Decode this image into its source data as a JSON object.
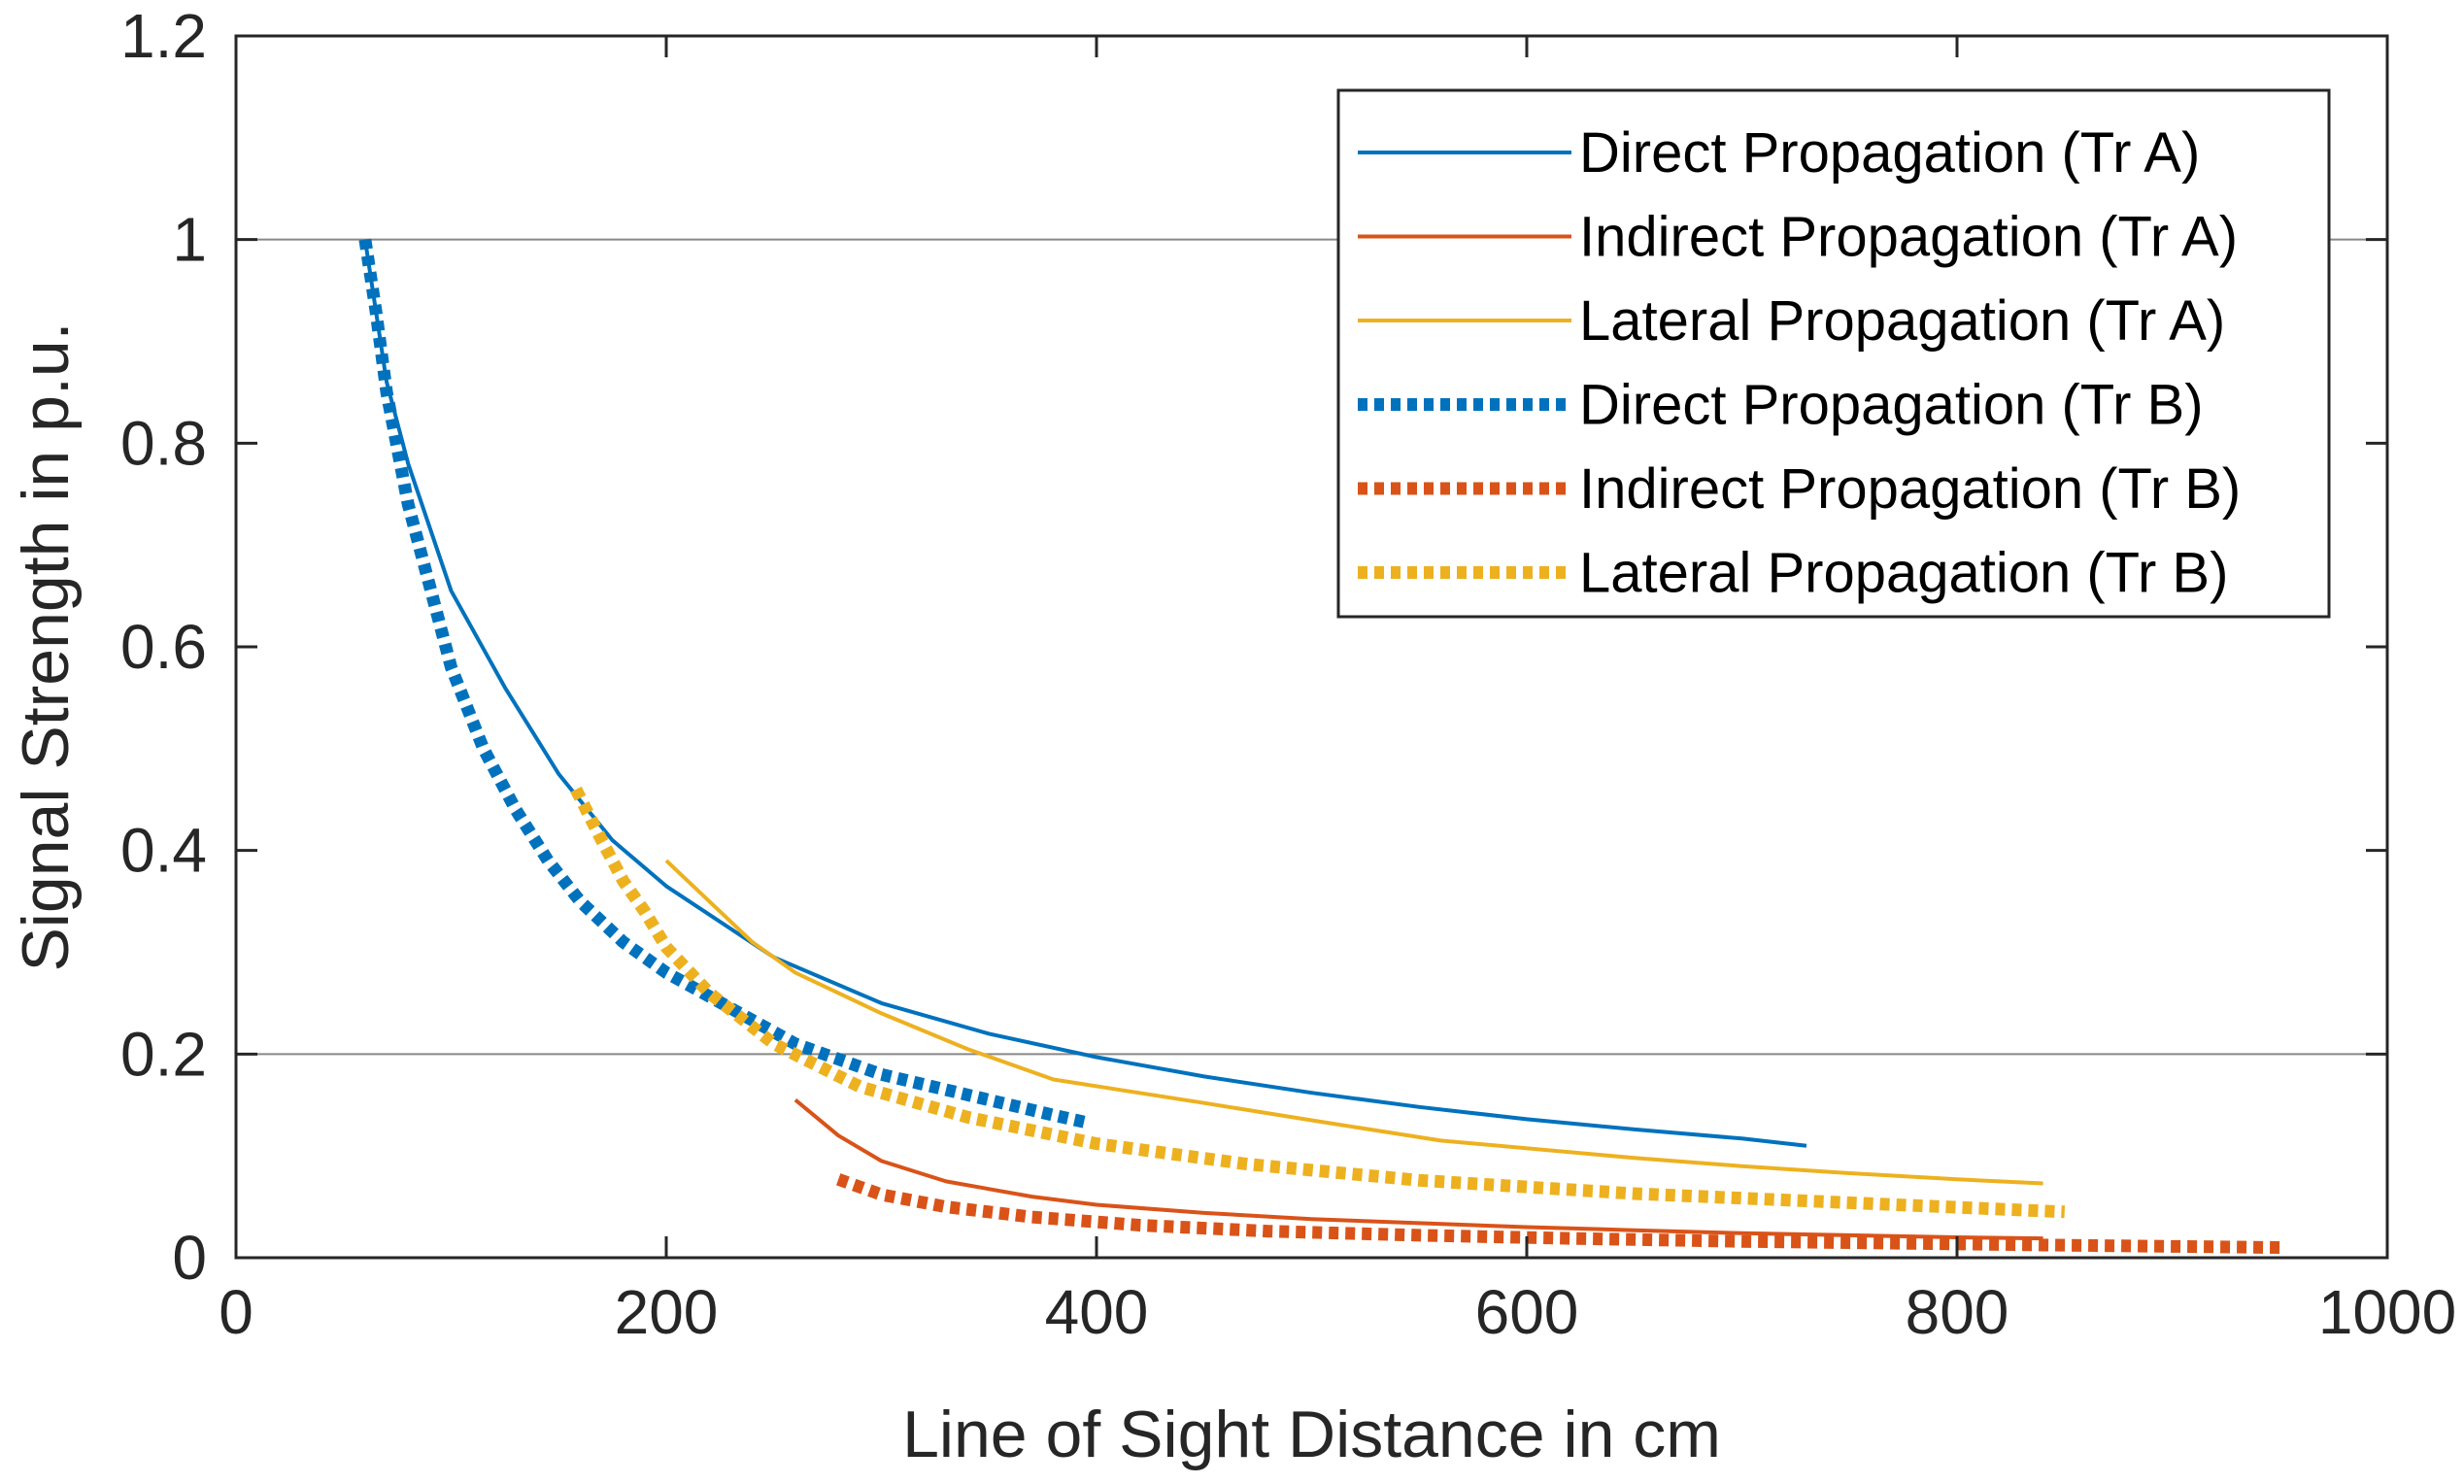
{
  "chart_data": {
    "type": "line",
    "title": "",
    "xlabel": "Line of Sight Distance in cm",
    "ylabel": "Signal Strength in p.u.",
    "xlim": [
      0,
      1000
    ],
    "ylim": [
      0,
      1.2
    ],
    "xticks": [
      0,
      200,
      400,
      600,
      800,
      1000
    ],
    "yticks": [
      0,
      0.2,
      0.4,
      0.6,
      0.8,
      1,
      1.2
    ],
    "xtick_labels": [
      "0",
      "200",
      "400",
      "600",
      "800",
      "1000"
    ],
    "ytick_labels": [
      "0",
      "0.2",
      "0.4",
      "0.6",
      "0.8",
      "1",
      "1.2"
    ],
    "grid_y": [
      0.2,
      1.0
    ],
    "legend_position": "top-right",
    "series": [
      {
        "name": "Direct Propagation (Tr A)",
        "style": "solid",
        "color": "#0072BD",
        "x": [
          60,
          70,
          80,
          100,
          125,
          150,
          175,
          200,
          250,
          300,
          350,
          400,
          450,
          500,
          550,
          600,
          650,
          700,
          730
        ],
        "y": [
          1.0,
          0.86,
          0.78,
          0.655,
          0.56,
          0.475,
          0.41,
          0.365,
          0.295,
          0.25,
          0.22,
          0.197,
          0.178,
          0.162,
          0.148,
          0.136,
          0.126,
          0.117,
          0.11
        ]
      },
      {
        "name": "Indirect Propagation (Tr A)",
        "style": "solid",
        "color": "#D95319",
        "x": [
          260,
          280,
          300,
          330,
          370,
          400,
          450,
          500,
          550,
          600,
          650,
          700,
          750,
          800,
          840
        ],
        "y": [
          0.155,
          0.12,
          0.095,
          0.075,
          0.06,
          0.052,
          0.044,
          0.038,
          0.034,
          0.03,
          0.027,
          0.024,
          0.022,
          0.02,
          0.019
        ]
      },
      {
        "name": "Lateral Propagation (Tr A)",
        "style": "solid",
        "color": "#EDB120",
        "x": [
          200,
          220,
          240,
          260,
          300,
          340,
          380,
          450,
          500,
          560,
          650,
          700,
          750,
          800,
          840
        ],
        "y": [
          0.39,
          0.35,
          0.31,
          0.28,
          0.24,
          0.205,
          0.175,
          0.152,
          0.135,
          0.115,
          0.098,
          0.09,
          0.083,
          0.077,
          0.073
        ]
      },
      {
        "name": "Direct Propagation (Tr B)",
        "style": "dotted",
        "color": "#0072BD",
        "x": [
          60,
          65,
          70,
          80,
          90,
          100,
          115,
          130,
          145,
          160,
          180,
          200,
          230,
          260,
          300,
          340,
          380,
          395
        ],
        "y": [
          1.0,
          0.93,
          0.85,
          0.74,
          0.66,
          0.58,
          0.5,
          0.44,
          0.39,
          0.35,
          0.31,
          0.28,
          0.245,
          0.21,
          0.18,
          0.16,
          0.14,
          0.133
        ]
      },
      {
        "name": "Indirect Propagation (Tr B)",
        "style": "dotted",
        "color": "#D95319",
        "x": [
          280,
          300,
          330,
          370,
          420,
          480,
          550,
          620,
          700,
          780,
          860,
          950
        ],
        "y": [
          0.077,
          0.062,
          0.05,
          0.04,
          0.032,
          0.026,
          0.022,
          0.019,
          0.016,
          0.014,
          0.012,
          0.01
        ]
      },
      {
        "name": "Lateral Propagation (Tr B)",
        "style": "dotted",
        "color": "#EDB120",
        "x": [
          158,
          170,
          180,
          190,
          200,
          220,
          250,
          290,
          340,
          400,
          470,
          550,
          650,
          750,
          850
        ],
        "y": [
          0.46,
          0.41,
          0.37,
          0.34,
          0.305,
          0.26,
          0.21,
          0.168,
          0.138,
          0.112,
          0.092,
          0.076,
          0.063,
          0.054,
          0.045
        ]
      }
    ]
  }
}
